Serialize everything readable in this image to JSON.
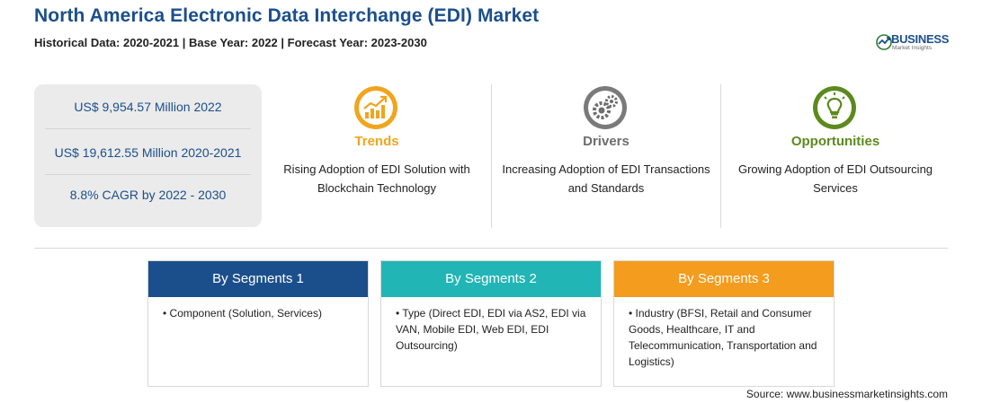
{
  "header": {
    "title": "North America Electronic Data Interchange (EDI) Market",
    "subtitle": "Historical Data: 2020-2021 | Base Year: 2022 | Forecast Year: 2023-2030"
  },
  "logo": {
    "name": "BUSINESS",
    "sub": "Market Insights"
  },
  "stats": [
    "US$ 9,954.57 Million 2022",
    "US$ 19,612.55 Million 2020-2021",
    "8.8% CAGR by 2022 - 2030"
  ],
  "columns": [
    {
      "title": "Trends",
      "text": "Rising Adoption of EDI Solution with Blockchain Technology",
      "color": "#f0a51e",
      "icon": "trend-chart-icon"
    },
    {
      "title": "Drivers",
      "text": "Increasing Adoption of EDI Transactions and Standards",
      "color": "#6d6d6d",
      "icon": "gears-icon"
    },
    {
      "title": "Opportunities",
      "text": "Growing Adoption of EDI Outsourcing Services",
      "color": "#5c8a1e",
      "icon": "lightbulb-icon"
    }
  ],
  "segments": [
    {
      "label": "By Segments 1",
      "text": "• Component (Solution, Services)",
      "color": "#1b4f8c"
    },
    {
      "label": "By Segments 2",
      "text": "• Type (Direct EDI, EDI via AS2, EDI via VAN, Mobile EDI, Web EDI, EDI Outsourcing)",
      "color": "#22b5b5"
    },
    {
      "label": "By Segments 3",
      "text": "• Industry (BFSI, Retail and Consumer Goods, Healthcare, IT and Telecommunication, Transportation and Logistics)",
      "color": "#f39c1e"
    }
  ],
  "source": "Source: www.businessmarketinsights.com"
}
